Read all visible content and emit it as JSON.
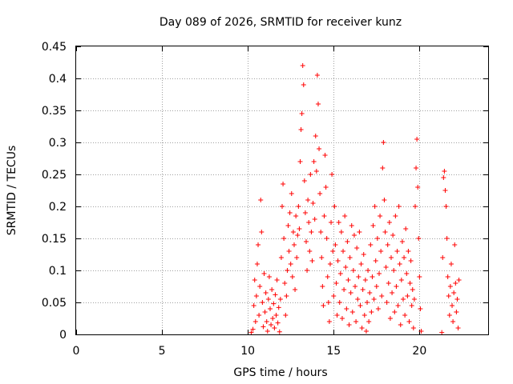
{
  "chart_data": {
    "type": "scatter",
    "title": "Day 089 of 2026, SRMTID for receiver kunz",
    "xlabel": "GPS time / hours",
    "ylabel": "SRMTID / TECUs",
    "xlim": [
      0,
      24
    ],
    "ylim": [
      0,
      0.45
    ],
    "xticks": [
      0,
      5,
      10,
      15,
      20
    ],
    "xtick_labels": [
      "0",
      "5",
      "10",
      "15",
      "20"
    ],
    "yticks": [
      0,
      0.05,
      0.1,
      0.15,
      0.2,
      0.25,
      0.3,
      0.35,
      0.4,
      0.45
    ],
    "ytick_labels": [
      "0",
      "0.05",
      "0.1",
      "0.15",
      "0.2",
      "0.25",
      "0.3",
      "0.35",
      "0.4",
      "0.45"
    ],
    "grid": true,
    "marker": "+",
    "color": "#ff0000",
    "series": [
      {
        "name": "SRMTID",
        "points": [
          [
            10.2,
            0.003
          ],
          [
            10.3,
            0.008
          ],
          [
            10.35,
            0.045
          ],
          [
            10.4,
            0.085
          ],
          [
            10.45,
            0.02
          ],
          [
            10.5,
            0.06
          ],
          [
            10.55,
            0.11
          ],
          [
            10.6,
            0.14
          ],
          [
            10.65,
            0.03
          ],
          [
            10.7,
            0.075
          ],
          [
            10.75,
            0.21
          ],
          [
            10.8,
            0.16
          ],
          [
            10.85,
            0.05
          ],
          [
            10.9,
            0.012
          ],
          [
            10.95,
            0.095
          ],
          [
            11.0,
            0.035
          ],
          [
            11.05,
            0.065
          ],
          [
            11.1,
            0.02
          ],
          [
            11.15,
            0.005
          ],
          [
            11.2,
            0.055
          ],
          [
            11.25,
            0.09
          ],
          [
            11.3,
            0.04
          ],
          [
            11.35,
            0.015
          ],
          [
            11.4,
            0.07
          ],
          [
            11.45,
            0.025
          ],
          [
            11.5,
            0.048
          ],
          [
            11.55,
            0.01
          ],
          [
            11.6,
            0.062
          ],
          [
            11.65,
            0.03
          ],
          [
            11.7,
            0.085
          ],
          [
            11.75,
            0.018
          ],
          [
            11.8,
            0.042
          ],
          [
            11.85,
            0.004
          ],
          [
            11.9,
            0.055
          ],
          [
            11.95,
            0.12
          ],
          [
            12.0,
            0.2
          ],
          [
            12.05,
            0.235
          ],
          [
            12.1,
            0.15
          ],
          [
            12.15,
            0.08
          ],
          [
            12.2,
            0.03
          ],
          [
            12.25,
            0.06
          ],
          [
            12.3,
            0.1
          ],
          [
            12.35,
            0.17
          ],
          [
            12.4,
            0.13
          ],
          [
            12.45,
            0.19
          ],
          [
            12.5,
            0.11
          ],
          [
            12.55,
            0.22
          ],
          [
            12.6,
            0.09
          ],
          [
            12.65,
            0.16
          ],
          [
            12.7,
            0.14
          ],
          [
            12.75,
            0.07
          ],
          [
            12.8,
            0.185
          ],
          [
            12.85,
            0.12
          ],
          [
            12.9,
            0.155
          ],
          [
            12.95,
            0.2
          ],
          [
            13.0,
            0.165
          ],
          [
            13.05,
            0.27
          ],
          [
            13.1,
            0.32
          ],
          [
            13.15,
            0.345
          ],
          [
            13.2,
            0.42
          ],
          [
            13.25,
            0.39
          ],
          [
            13.3,
            0.24
          ],
          [
            13.35,
            0.19
          ],
          [
            13.4,
            0.145
          ],
          [
            13.45,
            0.1
          ],
          [
            13.5,
            0.21
          ],
          [
            13.55,
            0.175
          ],
          [
            13.6,
            0.13
          ],
          [
            13.65,
            0.25
          ],
          [
            13.7,
            0.16
          ],
          [
            13.75,
            0.115
          ],
          [
            13.8,
            0.205
          ],
          [
            13.85,
            0.27
          ],
          [
            13.9,
            0.18
          ],
          [
            13.95,
            0.31
          ],
          [
            14.0,
            0.255
          ],
          [
            14.05,
            0.405
          ],
          [
            14.1,
            0.36
          ],
          [
            14.15,
            0.29
          ],
          [
            14.2,
            0.22
          ],
          [
            14.25,
            0.16
          ],
          [
            14.3,
            0.12
          ],
          [
            14.35,
            0.075
          ],
          [
            14.4,
            0.045
          ],
          [
            14.45,
            0.185
          ],
          [
            14.5,
            0.28
          ],
          [
            14.55,
            0.23
          ],
          [
            14.6,
            0.15
          ],
          [
            14.65,
            0.09
          ],
          [
            14.7,
            0.05
          ],
          [
            14.75,
            0.02
          ],
          [
            14.8,
            0.11
          ],
          [
            14.85,
            0.175
          ],
          [
            14.9,
            0.25
          ],
          [
            14.95,
            0.13
          ],
          [
            15.0,
            0.06
          ],
          [
            15.05,
            0.2
          ],
          [
            15.1,
            0.14
          ],
          [
            15.15,
            0.08
          ],
          [
            15.2,
            0.03
          ],
          [
            15.25,
            0.115
          ],
          [
            15.3,
            0.175
          ],
          [
            15.35,
            0.05
          ],
          [
            15.4,
            0.095
          ],
          [
            15.45,
            0.16
          ],
          [
            15.5,
            0.025
          ],
          [
            15.55,
            0.13
          ],
          [
            15.6,
            0.07
          ],
          [
            15.65,
            0.185
          ],
          [
            15.7,
            0.105
          ],
          [
            15.75,
            0.04
          ],
          [
            15.8,
            0.145
          ],
          [
            15.85,
            0.085
          ],
          [
            15.9,
            0.015
          ],
          [
            15.95,
            0.12
          ],
          [
            16.0,
            0.065
          ],
          [
            16.05,
            0.17
          ],
          [
            16.1,
            0.035
          ],
          [
            16.15,
            0.1
          ],
          [
            16.2,
            0.155
          ],
          [
            16.25,
            0.075
          ],
          [
            16.3,
            0.02
          ],
          [
            16.35,
            0.135
          ],
          [
            16.4,
            0.055
          ],
          [
            16.45,
            0.09
          ],
          [
            16.5,
            0.16
          ],
          [
            16.55,
            0.045
          ],
          [
            16.6,
            0.11
          ],
          [
            16.65,
            0.01
          ],
          [
            16.7,
            0.07
          ],
          [
            16.75,
            0.125
          ],
          [
            16.8,
            0.03
          ],
          [
            16.85,
            0.085
          ],
          [
            16.9,
            0.005
          ],
          [
            16.95,
            0.05
          ],
          [
            17.0,
            0.1
          ],
          [
            17.05,
            0.02
          ],
          [
            17.1,
            0.065
          ],
          [
            17.15,
            0.14
          ],
          [
            17.2,
            0.035
          ],
          [
            17.25,
            0.09
          ],
          [
            17.3,
            0.17
          ],
          [
            17.35,
            0.055
          ],
          [
            17.4,
            0.2
          ],
          [
            17.45,
            0.115
          ],
          [
            17.5,
            0.075
          ],
          [
            17.55,
            0.15
          ],
          [
            17.6,
            0.04
          ],
          [
            17.65,
            0.095
          ],
          [
            17.7,
            0.185
          ],
          [
            17.75,
            0.13
          ],
          [
            17.8,
            0.06
          ],
          [
            17.85,
            0.26
          ],
          [
            17.9,
            0.3
          ],
          [
            17.95,
            0.21
          ],
          [
            18.0,
            0.16
          ],
          [
            18.05,
            0.105
          ],
          [
            18.1,
            0.05
          ],
          [
            18.15,
            0.14
          ],
          [
            18.2,
            0.08
          ],
          [
            18.25,
            0.175
          ],
          [
            18.3,
            0.025
          ],
          [
            18.35,
            0.12
          ],
          [
            18.4,
            0.065
          ],
          [
            18.45,
            0.155
          ],
          [
            18.5,
            0.1
          ],
          [
            18.55,
            0.035
          ],
          [
            18.6,
            0.185
          ],
          [
            18.65,
            0.075
          ],
          [
            18.7,
            0.13
          ],
          [
            18.75,
            0.045
          ],
          [
            18.8,
            0.2
          ],
          [
            18.85,
            0.11
          ],
          [
            18.9,
            0.015
          ],
          [
            18.95,
            0.085
          ],
          [
            19.0,
            0.145
          ],
          [
            19.05,
            0.055
          ],
          [
            19.1,
            0.12
          ],
          [
            19.15,
            0.03
          ],
          [
            19.2,
            0.165
          ],
          [
            19.25,
            0.095
          ],
          [
            19.3,
            0.06
          ],
          [
            19.35,
            0.13
          ],
          [
            19.4,
            0.02
          ],
          [
            19.45,
            0.08
          ],
          [
            19.5,
            0.115
          ],
          [
            19.55,
            0.045
          ],
          [
            19.6,
            0.07
          ],
          [
            19.65,
            0.01
          ],
          [
            19.7,
            0.055
          ],
          [
            19.75,
            0.2
          ],
          [
            19.8,
            0.26
          ],
          [
            19.85,
            0.305
          ],
          [
            19.9,
            0.23
          ],
          [
            19.95,
            0.15
          ],
          [
            20.0,
            0.09
          ],
          [
            20.05,
            0.04
          ],
          [
            20.1,
            0.005
          ],
          [
            21.3,
            0.003
          ],
          [
            21.35,
            0.12
          ],
          [
            21.4,
            0.245
          ],
          [
            21.45,
            0.255
          ],
          [
            21.5,
            0.225
          ],
          [
            21.55,
            0.2
          ],
          [
            21.6,
            0.15
          ],
          [
            21.65,
            0.09
          ],
          [
            21.7,
            0.06
          ],
          [
            21.75,
            0.03
          ],
          [
            21.8,
            0.075
          ],
          [
            21.85,
            0.11
          ],
          [
            21.9,
            0.045
          ],
          [
            21.95,
            0.02
          ],
          [
            22.0,
            0.065
          ],
          [
            22.05,
            0.14
          ],
          [
            22.1,
            0.08
          ],
          [
            22.15,
            0.035
          ],
          [
            22.2,
            0.055
          ],
          [
            22.25,
            0.01
          ],
          [
            22.3,
            0.085
          ]
        ]
      }
    ]
  }
}
